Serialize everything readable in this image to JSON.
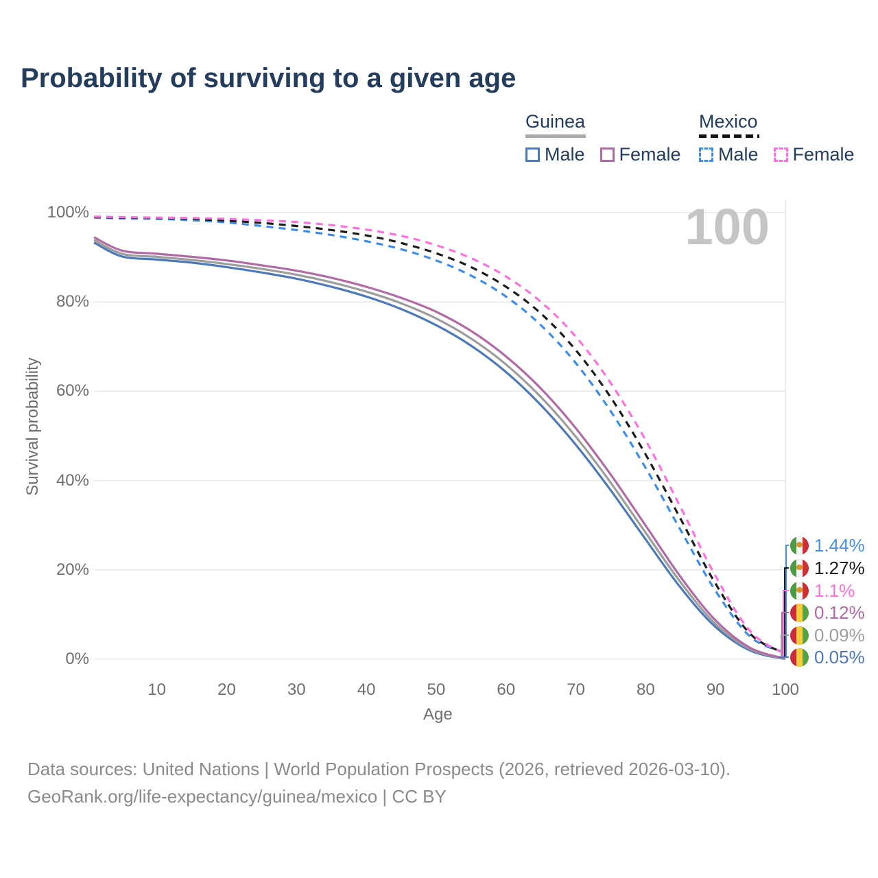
{
  "title": "Probability of surviving to a given age",
  "legend": {
    "groups": [
      {
        "label": "Guinea",
        "line_style": "solid",
        "underline_color": "#a9a9a9",
        "items": [
          {
            "label": "Male",
            "color": "#4d79b6"
          },
          {
            "label": "Female",
            "color": "#b16ba4"
          }
        ]
      },
      {
        "label": "Mexico",
        "line_style": "dashed",
        "underline_color": "#141414",
        "items": [
          {
            "label": "Male",
            "color": "#3d8de8"
          },
          {
            "label": "Female",
            "color": "#fb71dd"
          }
        ]
      }
    ]
  },
  "watermark": "100",
  "axes": {
    "y_label": "Survival probability",
    "y_ticks": [
      "100%",
      "80%",
      "60%",
      "40%",
      "20%",
      "0%"
    ],
    "y_tick_values": [
      100,
      80,
      60,
      40,
      20,
      0
    ],
    "x_label": "Age",
    "x_ticks": [
      "10",
      "20",
      "30",
      "40",
      "50",
      "60",
      "70",
      "80",
      "90",
      "100"
    ],
    "x_tick_values": [
      10,
      20,
      30,
      40,
      50,
      60,
      70,
      80,
      90,
      100
    ]
  },
  "end_labels": [
    {
      "series": "mexico-male",
      "value": "1.44%",
      "color": "#4a90e2",
      "flag": "mexico"
    },
    {
      "series": "mexico-both",
      "value": "1.27%",
      "color": "#1c1c1c",
      "flag": "mexico"
    },
    {
      "series": "mexico-female",
      "value": "1.1%",
      "color": "#fb71dd",
      "flag": "mexico"
    },
    {
      "series": "guinea-female",
      "value": "0.12%",
      "color": "#b16ba4",
      "flag": "guinea"
    },
    {
      "series": "guinea-both",
      "value": "0.09%",
      "color": "#9d9d9d",
      "flag": "guinea"
    },
    {
      "series": "guinea-male",
      "value": "0.05%",
      "color": "#4d79b6",
      "flag": "guinea"
    }
  ],
  "footer": {
    "line1": "Data sources: United Nations | World Population Prospects (2026, retrieved 2026-03-10).",
    "line2": "GeoRank.org/life-expectancy/guinea/mexico | CC BY"
  },
  "chart_data": {
    "type": "line",
    "title": "Probability of surviving to a given age",
    "xlabel": "Age",
    "ylabel": "Survival probability",
    "xlim": [
      1,
      100
    ],
    "ylim": [
      0,
      100
    ],
    "grid": "horizontal",
    "legend_position": "top-right",
    "x": [
      1,
      5,
      10,
      15,
      20,
      25,
      30,
      35,
      40,
      45,
      50,
      55,
      60,
      65,
      70,
      75,
      80,
      85,
      90,
      95,
      100
    ],
    "series": [
      {
        "name": "Guinea Male",
        "color": "#4d79b6",
        "dash": "solid",
        "values": [
          93.3,
          90.2,
          89.5,
          88.8,
          87.8,
          86.6,
          85.2,
          83.4,
          81.2,
          78.4,
          74.8,
          70.2,
          64.3,
          56.9,
          48.0,
          37.8,
          26.8,
          16.0,
          7.2,
          1.9,
          0.05
        ]
      },
      {
        "name": "Guinea Both sexes",
        "color": "#9d9d9d",
        "dash": "solid",
        "values": [
          93.9,
          90.8,
          90.1,
          89.4,
          88.5,
          87.4,
          86.1,
          84.4,
          82.3,
          79.7,
          76.3,
          71.8,
          66.0,
          58.7,
          49.8,
          39.5,
          28.3,
          17.2,
          7.9,
          2.2,
          0.09
        ]
      },
      {
        "name": "Guinea Female",
        "color": "#b16ba4",
        "dash": "solid",
        "values": [
          94.5,
          91.5,
          90.8,
          90.1,
          89.3,
          88.2,
          87.0,
          85.4,
          83.4,
          80.9,
          77.8,
          73.5,
          67.8,
          60.6,
          51.7,
          41.3,
          29.9,
          18.4,
          8.7,
          2.5,
          0.12
        ]
      },
      {
        "name": "Mexico Male",
        "color": "#3d8de8",
        "dash": "dashed",
        "values": [
          98.9,
          98.7,
          98.6,
          98.3,
          97.8,
          97.0,
          96.1,
          95.0,
          93.6,
          91.8,
          89.3,
          85.9,
          81.2,
          74.8,
          66.3,
          55.5,
          42.8,
          28.9,
          15.3,
          5.0,
          1.44
        ]
      },
      {
        "name": "Mexico Both sexes",
        "color": "#1c1c1c",
        "dash": "dashed",
        "values": [
          99.0,
          98.9,
          98.8,
          98.6,
          98.2,
          97.7,
          97.0,
          96.1,
          94.9,
          93.2,
          90.9,
          87.8,
          83.4,
          77.4,
          69.2,
          58.6,
          45.8,
          31.4,
          16.9,
          5.6,
          1.27
        ]
      },
      {
        "name": "Mexico Female",
        "color": "#fb71dd",
        "dash": "dashed",
        "values": [
          99.1,
          99.0,
          98.9,
          98.8,
          98.6,
          98.3,
          97.9,
          97.2,
          96.2,
          94.8,
          92.7,
          89.8,
          85.7,
          80.0,
          72.2,
          61.8,
          49.0,
          34.0,
          18.6,
          6.2,
          1.1
        ]
      }
    ],
    "end_values_at_age_100": {
      "mexico_male": "1.44%",
      "mexico_both": "1.27%",
      "mexico_female": "1.1%",
      "guinea_female": "0.12%",
      "guinea_both": "0.09%",
      "guinea_male": "0.05%"
    }
  }
}
